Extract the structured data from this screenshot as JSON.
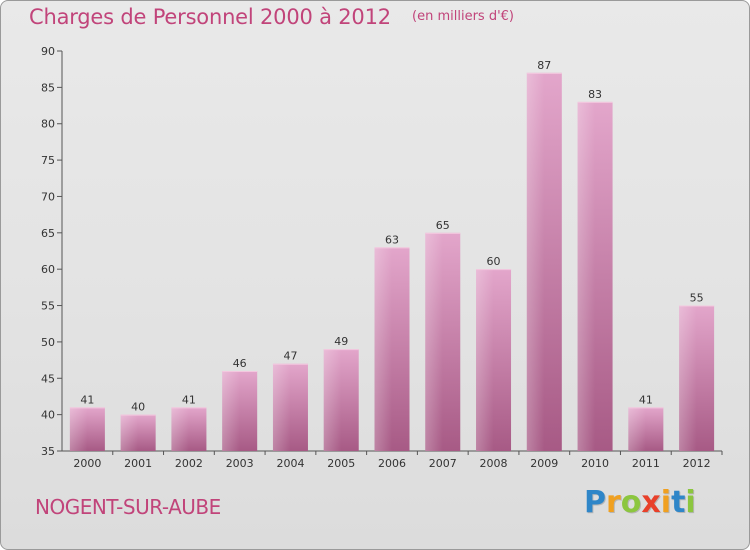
{
  "chart_data": {
    "type": "bar",
    "title": "Charges de Personnel 2000 à 2012",
    "unit_note": "(en milliers d'€)",
    "categories": [
      "2000",
      "2001",
      "2002",
      "2003",
      "2004",
      "2005",
      "2006",
      "2007",
      "2008",
      "2009",
      "2010",
      "2011",
      "2012"
    ],
    "values": [
      41,
      40,
      41,
      46,
      47,
      49,
      63,
      65,
      60,
      87,
      83,
      41,
      55
    ],
    "ylim": [
      35,
      90
    ],
    "yticks": [
      35,
      40,
      45,
      50,
      55,
      60,
      65,
      70,
      75,
      80,
      85,
      90
    ],
    "grid": false,
    "bar_color": "#c7609a",
    "xlabel": "",
    "ylabel": ""
  },
  "place_name": "NOGENT-SUR-AUBE",
  "brand": {
    "letters": [
      "P",
      "r",
      "o",
      "x",
      "i",
      "t",
      "i"
    ],
    "colors": [
      "#2f86c8",
      "#f0a020",
      "#8cc63f",
      "#e8402a",
      "#f0a020",
      "#2f86c8",
      "#8cc63f"
    ]
  }
}
